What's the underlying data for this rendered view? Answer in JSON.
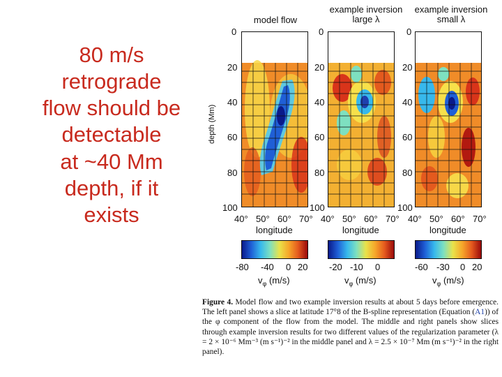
{
  "slide": {
    "lines": [
      "80 m/s",
      "retrograde",
      "flow should be",
      "detectable",
      "at ~40 Mm",
      "depth, if it",
      "exists"
    ]
  },
  "figure": {
    "panels": [
      {
        "title_lines": [
          "model flow"
        ],
        "colorbar_ticks": [
          "-80",
          "-40",
          "0",
          "20"
        ]
      },
      {
        "title_lines": [
          "example inversion",
          "large λ"
        ],
        "colorbar_ticks": [
          "-20",
          "-10",
          "0"
        ]
      },
      {
        "title_lines": [
          "example inversion",
          "small λ"
        ],
        "colorbar_ticks": [
          "-60",
          "-30",
          "0",
          "20"
        ]
      }
    ],
    "y_label": "depth (Mm)",
    "y_ticks": [
      "0",
      "20",
      "40",
      "60",
      "80",
      "100"
    ],
    "x_ticks": [
      "40°",
      "50°",
      "60°",
      "70°"
    ],
    "x_label": "longitude",
    "colorbar_label": "v",
    "colorbar_sub": "φ",
    "colorbar_unit": " (m/s)"
  },
  "caption": {
    "label": "Figure 4.",
    "text1": " Model flow and two example inversion results at about 5 days before emergence. The left panel shows a slice at latitude 17°8 of the B-spline representation (Equation (",
    "link": "A1",
    "text2": ")) of the φ component of the flow from the model. The middle and right panels show slices through example inversion results for two different values of the regularization parameter (λ = 2 × 10⁻⁶ Mm⁻³ (m s⁻¹)⁻² in the middle panel and λ = 2.5 × 10⁻⁷ Mm (m s⁻¹)⁻² in the right panel)."
  },
  "colors": {
    "slide_text": "#c82a1e",
    "grid": "#111111"
  }
}
